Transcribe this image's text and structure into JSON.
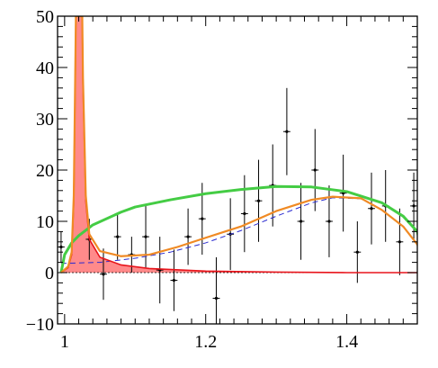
{
  "chart_data": {
    "type": "scatter",
    "title": "",
    "xlabel": "",
    "ylabel": "",
    "xlim": [
      0.99,
      1.5
    ],
    "ylim": [
      -10,
      50
    ],
    "grid": false,
    "xticks": [
      1.0,
      1.2,
      1.4
    ],
    "xtick_labels": [
      "1",
      "1.2",
      "1.4"
    ],
    "yticks": [
      -10,
      0,
      10,
      20,
      30,
      40,
      50
    ],
    "ytick_labels": [
      "−10",
      "0",
      "10",
      "20",
      "30",
      "40",
      "50"
    ],
    "x_minor_step": 0.02,
    "y_minor_step": 2,
    "colors": {
      "points": "#000000",
      "green": "#44cc44",
      "orange": "#f08a24",
      "red": "#e8141b",
      "red_fill": "#ff8a8a",
      "dashed": "#2a2acf"
    },
    "points": [
      {
        "x": 0.995,
        "y": 5.0,
        "xerr": 0.005,
        "yerr": 3.0
      },
      {
        "x": 1.035,
        "y": 6.5,
        "xerr": 0.005,
        "yerr": 4.0
      },
      {
        "x": 1.055,
        "y": -0.3,
        "xerr": 0.005,
        "yerr": 5.0
      },
      {
        "x": 1.075,
        "y": 7.0,
        "xerr": 0.005,
        "yerr": 4.5
      },
      {
        "x": 1.095,
        "y": 3.5,
        "xerr": 0.005,
        "yerr": 3.5
      },
      {
        "x": 1.115,
        "y": 7.0,
        "xerr": 0.005,
        "yerr": 6.0
      },
      {
        "x": 1.135,
        "y": 0.5,
        "xerr": 0.005,
        "yerr": 6.5
      },
      {
        "x": 1.155,
        "y": -1.5,
        "xerr": 0.005,
        "yerr": 6.0
      },
      {
        "x": 1.175,
        "y": 7.0,
        "xerr": 0.005,
        "yerr": 5.5
      },
      {
        "x": 1.195,
        "y": 10.5,
        "xerr": 0.005,
        "yerr": 7.0
      },
      {
        "x": 1.215,
        "y": -5.0,
        "xerr": 0.005,
        "yerr": 8.0
      },
      {
        "x": 1.235,
        "y": 7.5,
        "xerr": 0.005,
        "yerr": 7.0
      },
      {
        "x": 1.255,
        "y": 11.5,
        "xerr": 0.005,
        "yerr": 7.5
      },
      {
        "x": 1.275,
        "y": 14.0,
        "xerr": 0.005,
        "yerr": 8.0
      },
      {
        "x": 1.295,
        "y": 17.0,
        "xerr": 0.005,
        "yerr": 8.0
      },
      {
        "x": 1.315,
        "y": 27.5,
        "xerr": 0.005,
        "yerr": 8.5
      },
      {
        "x": 1.335,
        "y": 10.0,
        "xerr": 0.005,
        "yerr": 7.5
      },
      {
        "x": 1.355,
        "y": 20.0,
        "xerr": 0.005,
        "yerr": 8.0
      },
      {
        "x": 1.375,
        "y": 10.0,
        "xerr": 0.005,
        "yerr": 7.0
      },
      {
        "x": 1.395,
        "y": 15.5,
        "xerr": 0.005,
        "yerr": 7.5
      },
      {
        "x": 1.415,
        "y": 4.0,
        "xerr": 0.005,
        "yerr": 6.0
      },
      {
        "x": 1.435,
        "y": 12.5,
        "xerr": 0.005,
        "yerr": 7.0
      },
      {
        "x": 1.455,
        "y": 13.0,
        "xerr": 0.005,
        "yerr": 7.0
      },
      {
        "x": 1.475,
        "y": 6.0,
        "xerr": 0.005,
        "yerr": 6.5
      },
      {
        "x": 1.495,
        "y": 13.0,
        "xerr": 0.005,
        "yerr": 6.5
      }
    ],
    "green_curve": [
      [
        0.995,
        0.0
      ],
      [
        1.0,
        3.5
      ],
      [
        1.01,
        5.8
      ],
      [
        1.02,
        7.2
      ],
      [
        1.04,
        9.3
      ],
      [
        1.08,
        11.8
      ],
      [
        1.1,
        12.8
      ],
      [
        1.15,
        14.2
      ],
      [
        1.2,
        15.4
      ],
      [
        1.25,
        16.2
      ],
      [
        1.3,
        16.8
      ],
      [
        1.35,
        16.7
      ],
      [
        1.4,
        15.8
      ],
      [
        1.45,
        13.6
      ],
      [
        1.48,
        11.0
      ],
      [
        1.5,
        8.0
      ],
      [
        1.51,
        2.0
      ]
    ],
    "orange_curve": [
      [
        0.995,
        0.0
      ],
      [
        1.005,
        1.2
      ],
      [
        1.01,
        4.0
      ],
      [
        1.013,
        15.0
      ],
      [
        1.015,
        38.0
      ],
      [
        1.016,
        50.0
      ],
      [
        1.025,
        50.0
      ],
      [
        1.026,
        38.0
      ],
      [
        1.03,
        15.0
      ],
      [
        1.035,
        7.5
      ],
      [
        1.05,
        4.2
      ],
      [
        1.08,
        3.2
      ],
      [
        1.12,
        3.5
      ],
      [
        1.16,
        5.0
      ],
      [
        1.2,
        6.8
      ],
      [
        1.25,
        9.0
      ],
      [
        1.3,
        12.0
      ],
      [
        1.35,
        14.2
      ],
      [
        1.38,
        14.8
      ],
      [
        1.42,
        14.5
      ],
      [
        1.45,
        12.2
      ],
      [
        1.48,
        9.0
      ],
      [
        1.5,
        5.5
      ],
      [
        1.51,
        1.0
      ]
    ],
    "red_curve": [
      [
        0.995,
        0.0
      ],
      [
        1.005,
        1.0
      ],
      [
        1.01,
        3.5
      ],
      [
        1.013,
        14.0
      ],
      [
        1.015,
        37.0
      ],
      [
        1.016,
        50.0
      ],
      [
        1.025,
        50.0
      ],
      [
        1.026,
        37.0
      ],
      [
        1.03,
        14.0
      ],
      [
        1.035,
        6.5
      ],
      [
        1.05,
        3.0
      ],
      [
        1.08,
        1.5
      ],
      [
        1.12,
        0.8
      ],
      [
        1.2,
        0.3
      ],
      [
        1.3,
        0.1
      ],
      [
        1.4,
        0.0
      ],
      [
        1.5,
        0.0
      ],
      [
        1.51,
        0.0
      ]
    ],
    "dashed_curve": [
      [
        0.995,
        1.8
      ],
      [
        1.05,
        2.0
      ],
      [
        1.1,
        2.8
      ],
      [
        1.15,
        4.0
      ],
      [
        1.2,
        5.8
      ],
      [
        1.25,
        8.2
      ],
      [
        1.3,
        11.0
      ],
      [
        1.35,
        13.6
      ],
      [
        1.38,
        14.6
      ],
      [
        1.42,
        14.4
      ],
      [
        1.45,
        12.2
      ],
      [
        1.48,
        9.0
      ],
      [
        1.5,
        5.5
      ]
    ]
  }
}
